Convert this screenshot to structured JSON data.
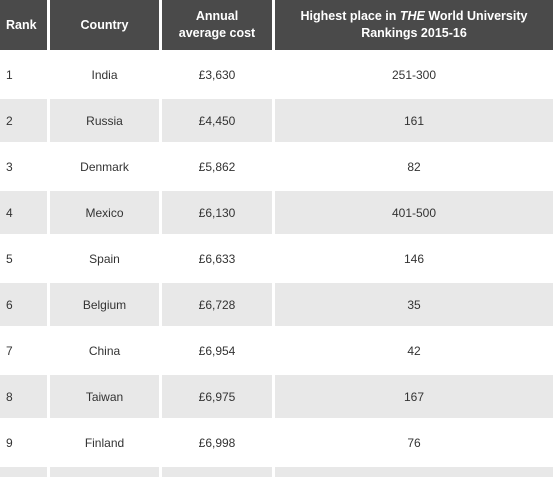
{
  "header": {
    "rank": "Rank",
    "country": "Country",
    "cost_line1": "Annual",
    "cost_line2": "average cost",
    "place_prefix": "Highest place in ",
    "place_italic": "THE",
    "place_suffix": " World University",
    "place_line2": "Rankings 2015-16"
  },
  "rows": [
    {
      "rank": "1",
      "country": "India",
      "cost": "£3,630",
      "place": "251-300"
    },
    {
      "rank": "2",
      "country": "Russia",
      "cost": "£4,450",
      "place": "161"
    },
    {
      "rank": "3",
      "country": "Denmark",
      "cost": "£5,862",
      "place": "82"
    },
    {
      "rank": "4",
      "country": "Mexico",
      "cost": "£6,130",
      "place": "401-500"
    },
    {
      "rank": "5",
      "country": "Spain",
      "cost": "£6,633",
      "place": "146"
    },
    {
      "rank": "6",
      "country": "Belgium",
      "cost": "£6,728",
      "place": "35"
    },
    {
      "rank": "7",
      "country": "China",
      "cost": "£6,954",
      "place": "42"
    },
    {
      "rank": "8",
      "country": "Taiwan",
      "cost": "£6,975",
      "place": "167"
    },
    {
      "rank": "9",
      "country": "Finland",
      "cost": "£6,998",
      "place": "76"
    }
  ]
}
